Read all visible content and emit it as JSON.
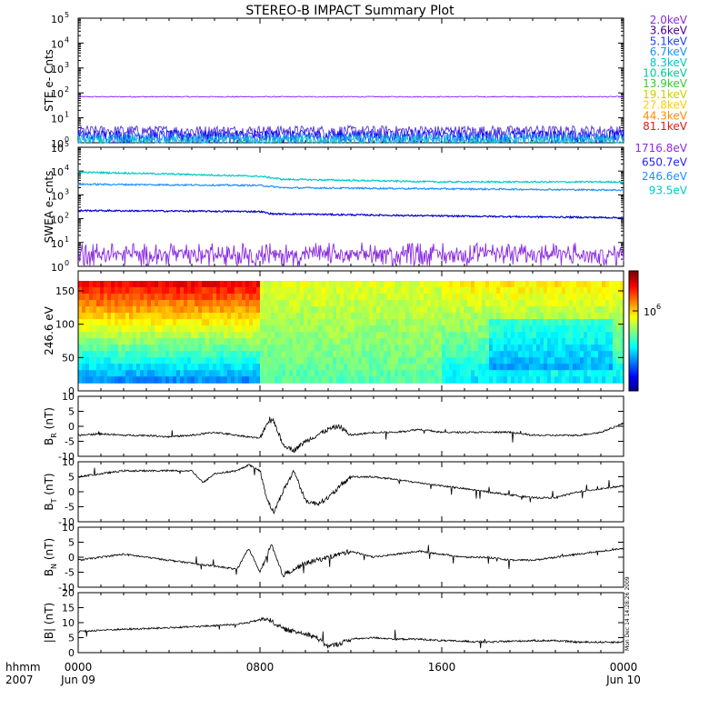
{
  "title": "STEREO-B IMPACT Summary Plot",
  "x_axis": {
    "label_lines": [
      "hhmm",
      "2007"
    ],
    "ticks": [
      {
        "t": 0,
        "line1": "0000",
        "line2": "Jun 09"
      },
      {
        "t": 8,
        "line1": "0800",
        "line2": ""
      },
      {
        "t": 16,
        "line1": "1600",
        "line2": ""
      },
      {
        "t": 24,
        "line1": "0000",
        "line2": "Jun 10"
      }
    ],
    "range_hours": [
      0,
      24
    ]
  },
  "side_annotation": "Mon Dec 14 14:28:26 2009",
  "colors": {
    "axes": "#000000",
    "ste_2keV": "#7f00ff",
    "ste_3_6keV": "#3f1fd0",
    "ste_5_1keV": "#0000ff",
    "ste_6_7keV": "#1e90ff",
    "ste_8_3keV": "#00c8c8"
  },
  "ste_legend": [
    {
      "label": "2.0keV",
      "color": "#8a2be2"
    },
    {
      "label": "3.6keV",
      "color": "#4b0082"
    },
    {
      "label": "5.1keV",
      "color": "#1f3fff"
    },
    {
      "label": "6.7keV",
      "color": "#1e90ff"
    },
    {
      "label": "8.3keV",
      "color": "#00c8c8"
    },
    {
      "label": "10.6keV",
      "color": "#00c896"
    },
    {
      "label": "13.9keV",
      "color": "#32cd32"
    },
    {
      "label": "19.1keV",
      "color": "#c8d200"
    },
    {
      "label": "27.8keV",
      "color": "#ffd000"
    },
    {
      "label": "44.3keV",
      "color": "#ff8c00"
    },
    {
      "label": "81.1keV",
      "color": "#e41a1a"
    }
  ],
  "swea_legend": [
    {
      "label": "1716.8eV",
      "color": "#8a2be2"
    },
    {
      "label": "650.7eV",
      "color": "#1f1fff"
    },
    {
      "label": "246.6eV",
      "color": "#1e90ff"
    },
    {
      "label": "93.5eV",
      "color": "#00c8c8"
    }
  ],
  "colorbar": {
    "label": "10",
    "exponent": "6"
  },
  "chart_data": [
    {
      "type": "line",
      "panel": "STE",
      "ylabel": "STE e- Cnts",
      "yscale": "log",
      "ylim": [
        1,
        100000
      ],
      "ytick_exponents": [
        0,
        1,
        2,
        3,
        4,
        5
      ],
      "series": [
        {
          "name": "2.0keV",
          "approx_level": 70
        },
        {
          "name": "3.6keV",
          "approx_level": 3
        },
        {
          "name": "5.1keV",
          "approx_level": 2
        },
        {
          "name": "6.7keV",
          "approx_level": 1.5
        },
        {
          "name": "8.3keV",
          "approx_level": 1.2
        }
      ]
    },
    {
      "type": "line",
      "panel": "SWEA",
      "ylabel": "SWEA e- cnts",
      "yscale": "log",
      "ylim": [
        1,
        100000
      ],
      "ytick_exponents": [
        0,
        1,
        2,
        3,
        4,
        5
      ],
      "series": [
        {
          "name": "93.5eV",
          "x": [
            0,
            8,
            9,
            16,
            24
          ],
          "y": [
            9000,
            6000,
            4500,
            3500,
            3500
          ]
        },
        {
          "name": "246.6eV",
          "x": [
            0,
            8,
            9,
            16,
            24
          ],
          "y": [
            2800,
            2500,
            2000,
            1800,
            1600
          ]
        },
        {
          "name": "650.7eV",
          "x": [
            0,
            8,
            8.5,
            16,
            24
          ],
          "y": [
            220,
            200,
            160,
            130,
            110
          ]
        },
        {
          "name": "1716.8eV",
          "x": [
            0,
            24
          ],
          "y": [
            2.5,
            2.5
          ]
        }
      ]
    },
    {
      "type": "heatmap",
      "panel": "PAD",
      "ylabel": "246.6 eV",
      "ylim": [
        0,
        180
      ],
      "yticks": [
        0,
        50,
        100,
        150
      ]
    },
    {
      "type": "line",
      "panel": "BR",
      "ylabel": "B",
      "ylabel_sub": "R",
      "ylabel_unit": "(nT)",
      "ylim": [
        -10,
        10
      ],
      "yticks": [
        -10,
        -5,
        0,
        5,
        10
      ],
      "series": [
        {
          "x": [
            0,
            1,
            2,
            3,
            4,
            5,
            6,
            7,
            8,
            8.3,
            8.6,
            9,
            9.5,
            10,
            10.5,
            11,
            11.5,
            12,
            13,
            14,
            15,
            16,
            17,
            18,
            19,
            20,
            21,
            22,
            23,
            24
          ],
          "y": [
            -3,
            -2.5,
            -3,
            -3,
            -3.5,
            -3,
            -2,
            -3,
            -4,
            1,
            2,
            -6,
            -8,
            -5,
            -3,
            -1,
            0,
            -3,
            -2,
            -2,
            -1,
            -2,
            -2,
            -2,
            -2,
            -3,
            -3,
            -3,
            -2,
            1
          ]
        }
      ]
    },
    {
      "type": "line",
      "panel": "BT",
      "ylabel": "B",
      "ylabel_sub": "T",
      "ylabel_unit": "(nT)",
      "ylim": [
        -10,
        10
      ],
      "yticks": [
        -10,
        -5,
        0,
        5,
        10
      ],
      "series": [
        {
          "x": [
            0,
            1,
            2,
            3,
            4,
            5,
            5.5,
            6,
            7,
            7.5,
            8,
            8.3,
            8.6,
            9,
            9.5,
            10,
            10.5,
            11,
            12,
            13,
            14,
            15,
            16,
            17,
            18,
            19,
            20,
            21,
            22,
            23,
            24
          ],
          "y": [
            5,
            6,
            7,
            7,
            7,
            7,
            3,
            6,
            7,
            9,
            7,
            -2,
            -7,
            0,
            7,
            -3,
            -4,
            -2,
            5,
            5,
            4,
            3,
            2,
            1,
            0,
            -1,
            -2,
            -2,
            0,
            1,
            2
          ]
        }
      ]
    },
    {
      "type": "line",
      "panel": "BN",
      "ylabel": "B",
      "ylabel_sub": "N",
      "ylabel_unit": "(nT)",
      "ylim": [
        -10,
        10
      ],
      "yticks": [
        -10,
        -5,
        0,
        5,
        10
      ],
      "series": [
        {
          "x": [
            0,
            1,
            2,
            3,
            4,
            5,
            6,
            7,
            7.5,
            8,
            8.5,
            9,
            9.5,
            10,
            11,
            12,
            13,
            14,
            15,
            16,
            17,
            18,
            19,
            20,
            21,
            22,
            23,
            24
          ],
          "y": [
            -1,
            0,
            1,
            0,
            -1,
            -2,
            -3,
            -4,
            3,
            -5,
            4,
            -6,
            -4,
            -2,
            0,
            2,
            0,
            1,
            2,
            1,
            0,
            0,
            -1,
            -1,
            0,
            1,
            2,
            3
          ]
        }
      ]
    },
    {
      "type": "line",
      "panel": "B",
      "ylabel": "|B| (nT)",
      "ylim": [
        0,
        20
      ],
      "yticks": [
        0,
        5,
        10,
        15,
        20
      ],
      "series": [
        {
          "x": [
            0,
            1,
            2,
            3,
            4,
            5,
            6,
            7,
            7.5,
            8,
            8.3,
            8.6,
            9,
            9.5,
            10,
            10.5,
            11,
            11.5,
            12,
            13,
            14,
            15,
            16,
            17,
            18,
            19,
            20,
            21,
            22,
            23,
            24
          ],
          "y": [
            7,
            7.5,
            7.8,
            8,
            8.3,
            8.6,
            9,
            9.5,
            10,
            11,
            11.5,
            10,
            8,
            7,
            6.5,
            5,
            2,
            3,
            4.5,
            5,
            4.5,
            4.5,
            4,
            3.8,
            3.5,
            3.8,
            4,
            4,
            3.5,
            3.5,
            3.5
          ]
        }
      ]
    }
  ]
}
